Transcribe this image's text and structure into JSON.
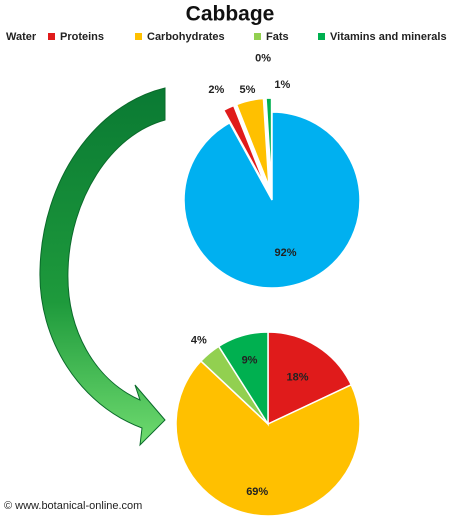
{
  "chart_data": [
    {
      "type": "pie",
      "title": "Cabbage",
      "categories": [
        "Water",
        "Proteins",
        "Carbohydrates",
        "Fats",
        "Vitamins and minerals"
      ],
      "values": [
        92,
        2,
        5,
        0,
        1
      ],
      "value_labels": [
        "92%",
        "2%",
        "5%",
        "0%",
        "1%"
      ],
      "colors": [
        "#00b0f0",
        "#e01b1b",
        "#ffc000",
        "#92d050",
        "#00b050"
      ],
      "legend": "top"
    },
    {
      "type": "pie",
      "categories": [
        "Proteins",
        "Carbohydrates",
        "Fats",
        "Vitamins and minerals"
      ],
      "values": [
        18,
        69,
        4,
        9
      ],
      "value_labels": [
        "18%",
        "69%",
        "4%",
        "9%"
      ],
      "colors": [
        "#e01b1b",
        "#ffc000",
        "#92d050",
        "#00b050"
      ]
    }
  ],
  "source": "© www.botanical-online.com"
}
